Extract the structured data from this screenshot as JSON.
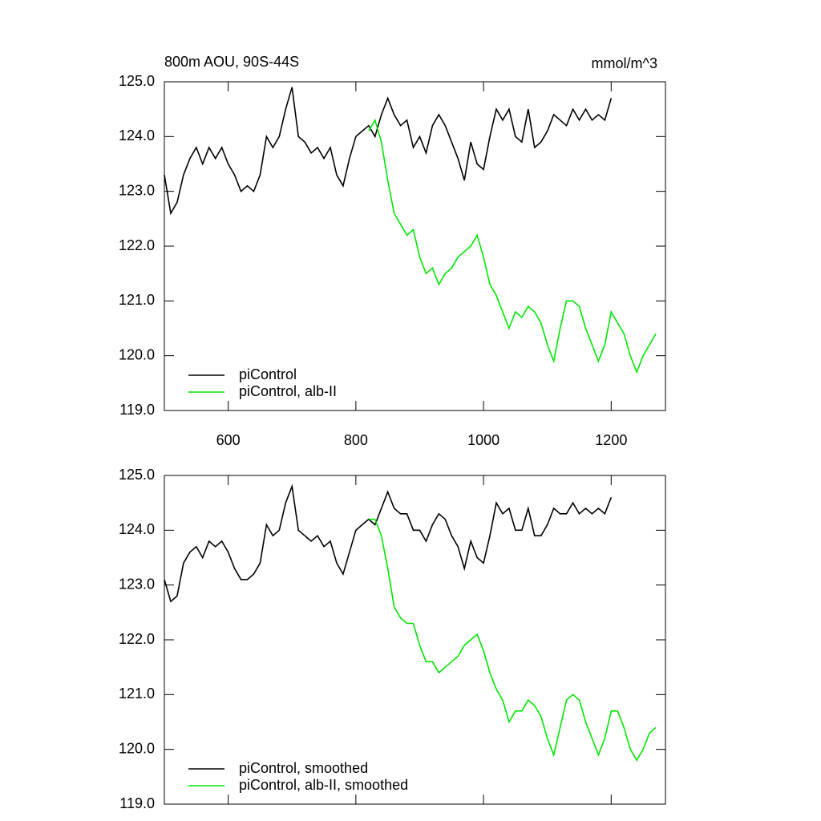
{
  "chart_data": [
    {
      "type": "line",
      "title": "800m AOU, 90S-44S",
      "unit_label": "mmol/m^3",
      "xlim": [
        500,
        1285
      ],
      "xticks": [
        600,
        800,
        1000,
        1200
      ],
      "show_xtick_labels": true,
      "ylim": [
        119,
        125
      ],
      "yticks": [
        {
          "value": 119,
          "label": "119.0"
        },
        {
          "value": 120,
          "label": "120.0"
        },
        {
          "value": 121,
          "label": "121.0"
        },
        {
          "value": 122,
          "label": "122.0"
        },
        {
          "value": 123,
          "label": "123.0"
        },
        {
          "value": 124,
          "label": "124.0"
        },
        {
          "value": 125,
          "label": "125.0"
        }
      ],
      "legend": "lower left",
      "series": [
        {
          "name": "piControl",
          "color": "#000000",
          "x": [
            500,
            510,
            520,
            530,
            540,
            550,
            560,
            570,
            580,
            590,
            600,
            610,
            620,
            630,
            640,
            650,
            660,
            670,
            680,
            690,
            700,
            710,
            720,
            730,
            740,
            750,
            760,
            770,
            780,
            790,
            800,
            810,
            820,
            830,
            840,
            850,
            860,
            870,
            880,
            890,
            900,
            910,
            920,
            930,
            940,
            950,
            960,
            970,
            980,
            990,
            1000,
            1010,
            1020,
            1030,
            1040,
            1050,
            1060,
            1070,
            1080,
            1090,
            1100,
            1110,
            1120,
            1130,
            1140,
            1150,
            1160,
            1170,
            1180,
            1190,
            1200
          ],
          "values": [
            123.3,
            122.6,
            122.8,
            123.3,
            123.6,
            123.8,
            123.5,
            123.8,
            123.6,
            123.8,
            123.5,
            123.3,
            123.0,
            123.1,
            123.0,
            123.3,
            124.0,
            123.8,
            124.0,
            124.5,
            124.9,
            124.0,
            123.9,
            123.7,
            123.8,
            123.6,
            123.8,
            123.3,
            123.1,
            123.6,
            124.0,
            124.1,
            124.2,
            124.0,
            124.4,
            124.7,
            124.4,
            124.2,
            124.3,
            123.8,
            124.0,
            123.7,
            124.2,
            124.4,
            124.2,
            123.9,
            123.6,
            123.2,
            123.9,
            123.5,
            123.4,
            124.0,
            124.5,
            124.3,
            124.5,
            124.0,
            123.9,
            124.5,
            123.8,
            123.9,
            124.1,
            124.4,
            124.3,
            124.2,
            124.5,
            124.3,
            124.5,
            124.3,
            124.4,
            124.3,
            124.7
          ]
        },
        {
          "name": "piControl, alb-II",
          "color": "#00e600",
          "x": [
            820,
            830,
            840,
            850,
            860,
            870,
            880,
            890,
            900,
            910,
            920,
            930,
            940,
            950,
            960,
            970,
            980,
            990,
            1000,
            1010,
            1020,
            1030,
            1040,
            1050,
            1060,
            1070,
            1080,
            1090,
            1100,
            1110,
            1120,
            1130,
            1140,
            1150,
            1160,
            1170,
            1180,
            1190,
            1200,
            1210,
            1220,
            1230,
            1240,
            1250,
            1260,
            1270
          ],
          "values": [
            124.1,
            124.3,
            123.9,
            123.2,
            122.6,
            122.4,
            122.2,
            122.3,
            121.8,
            121.5,
            121.6,
            121.3,
            121.5,
            121.6,
            121.8,
            121.9,
            122.0,
            122.2,
            121.8,
            121.3,
            121.1,
            120.8,
            120.5,
            120.8,
            120.7,
            120.9,
            120.8,
            120.6,
            120.2,
            119.9,
            120.5,
            121.0,
            121.0,
            120.9,
            120.5,
            120.2,
            119.9,
            120.2,
            120.8,
            120.6,
            120.4,
            120.0,
            119.7,
            120.0,
            120.2,
            120.4
          ]
        }
      ]
    },
    {
      "type": "line",
      "xlim": [
        500,
        1285
      ],
      "xticks": [
        600,
        800,
        1000,
        1200
      ],
      "show_xtick_labels": false,
      "ylim": [
        119,
        125
      ],
      "yticks": [
        {
          "value": 119,
          "label": "119.0"
        },
        {
          "value": 120,
          "label": "120.0"
        },
        {
          "value": 121,
          "label": "121.0"
        },
        {
          "value": 122,
          "label": "122.0"
        },
        {
          "value": 123,
          "label": "123.0"
        },
        {
          "value": 124,
          "label": "124.0"
        },
        {
          "value": 125,
          "label": "125.0"
        }
      ],
      "legend": "lower left",
      "series": [
        {
          "name": "piControl, smoothed",
          "color": "#000000",
          "x": [
            500,
            510,
            520,
            530,
            540,
            550,
            560,
            570,
            580,
            590,
            600,
            610,
            620,
            630,
            640,
            650,
            660,
            670,
            680,
            690,
            700,
            710,
            720,
            730,
            740,
            750,
            760,
            770,
            780,
            790,
            800,
            810,
            820,
            830,
            840,
            850,
            860,
            870,
            880,
            890,
            900,
            910,
            920,
            930,
            940,
            950,
            960,
            970,
            980,
            990,
            1000,
            1010,
            1020,
            1030,
            1040,
            1050,
            1060,
            1070,
            1080,
            1090,
            1100,
            1110,
            1120,
            1130,
            1140,
            1150,
            1160,
            1170,
            1180,
            1190,
            1200
          ],
          "values": [
            123.1,
            122.7,
            122.8,
            123.4,
            123.6,
            123.7,
            123.5,
            123.8,
            123.7,
            123.8,
            123.6,
            123.3,
            123.1,
            123.1,
            123.2,
            123.4,
            124.1,
            123.9,
            124.0,
            124.5,
            124.8,
            124.0,
            123.9,
            123.8,
            123.9,
            123.7,
            123.8,
            123.4,
            123.2,
            123.6,
            124.0,
            124.1,
            124.2,
            124.1,
            124.4,
            124.7,
            124.4,
            124.3,
            124.3,
            124.0,
            124.0,
            123.8,
            124.1,
            124.3,
            124.2,
            123.9,
            123.7,
            123.3,
            123.8,
            123.5,
            123.4,
            123.9,
            124.5,
            124.3,
            124.4,
            124.0,
            124.0,
            124.4,
            123.9,
            123.9,
            124.1,
            124.4,
            124.3,
            124.3,
            124.5,
            124.3,
            124.4,
            124.3,
            124.4,
            124.3,
            124.6
          ]
        },
        {
          "name": "piControl, alb-II, smoothed",
          "color": "#00e600",
          "x": [
            820,
            830,
            840,
            850,
            860,
            870,
            880,
            890,
            900,
            910,
            920,
            930,
            940,
            950,
            960,
            970,
            980,
            990,
            1000,
            1010,
            1020,
            1030,
            1040,
            1050,
            1060,
            1070,
            1080,
            1090,
            1100,
            1110,
            1120,
            1130,
            1140,
            1150,
            1160,
            1170,
            1180,
            1190,
            1200,
            1210,
            1220,
            1230,
            1240,
            1250,
            1260,
            1270
          ],
          "values": [
            124.2,
            124.2,
            123.9,
            123.3,
            122.6,
            122.4,
            122.3,
            122.3,
            121.9,
            121.6,
            121.6,
            121.4,
            121.5,
            121.6,
            121.7,
            121.9,
            122.0,
            122.1,
            121.8,
            121.4,
            121.1,
            120.9,
            120.5,
            120.7,
            120.7,
            120.9,
            120.8,
            120.6,
            120.2,
            119.9,
            120.4,
            120.9,
            121.0,
            120.9,
            120.5,
            120.2,
            119.9,
            120.2,
            120.7,
            120.7,
            120.4,
            120.0,
            119.8,
            120.0,
            120.3,
            120.4
          ]
        }
      ]
    }
  ]
}
